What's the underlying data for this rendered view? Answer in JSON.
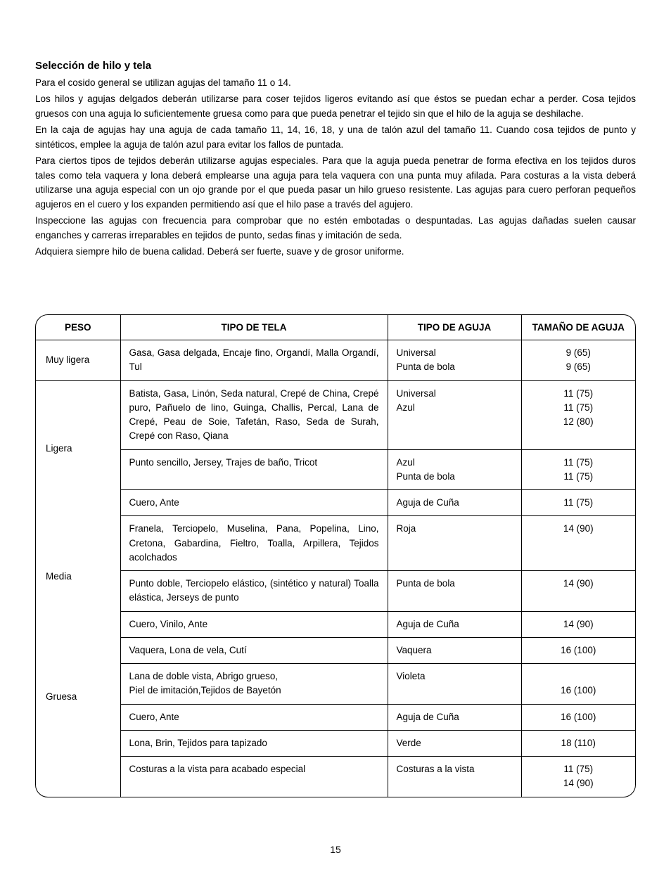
{
  "title": "Selección de hilo y tela",
  "paragraphs": [
    "Para el cosido general se utilizan agujas del tamaño 11 o 14.",
    "Los hilos y agujas delgados deberán utilizarse para coser tejidos ligeros evitando así que éstos se puedan echar a perder. Cosa tejidos gruesos con una aguja lo suficientemente gruesa como para que pueda penetrar el tejido sin que el hilo de la aguja se deshilache.",
    "En la caja de agujas hay una aguja de cada tamaño 11, 14, 16, 18, y una de talón azul del tamaño 11. Cuando cosa tejidos de punto y sintéticos, emplee la aguja de talón azul para evitar los fallos de puntada.",
    "Para ciertos tipos de tejidos deberán utilizarse agujas especiales. Para que la aguja pueda penetrar de forma efectiva en los tejidos duros tales como tela vaquera y lona deberá emplearse una aguja para tela vaquera con una punta muy afilada. Para costuras a la vista deberá utilizarse una aguja especial con un ojo grande por el que pueda pasar un hilo grueso resistente. Las agujas para cuero perforan pequeños agujeros en el cuero y los expanden permitiendo así que el hilo pase a través del agujero.",
    "Inspeccione las agujas con frecuencia para comprobar que no estén embotadas o despuntadas. Las agujas dañadas suelen causar enganches y carreras irreparables en tejidos de punto, sedas finas y imitación de seda.",
    "Adquiera siempre hilo de buena calidad. Deberá ser fuerte, suave y de grosor uniforme."
  ],
  "headers": {
    "peso": "PESO",
    "tela": "TIPO DE TELA",
    "aguja": "TIPO DE AGUJA",
    "tam": "TAMAÑO DE AGUJA"
  },
  "rows": {
    "r0": {
      "peso": "Muy ligera",
      "tela": "Gasa, Gasa delgada, Encaje fino, Organdí, Malla Organdí, Tul",
      "aguja": "Universal\nPunta de bola",
      "tam": "9 (65)\n9 (65)"
    },
    "r1": {
      "peso": "Ligera",
      "tela": "Batista, Gasa, Linón, Seda natural, Crepé de China, Crepé puro, Pañuelo de lino, Guinga, Challis, Percal, Lana de Crepé, Peau de Soie, Tafetán, Raso, Seda de Surah, Crepé con Raso, Qiana",
      "aguja": "Universal\nAzul",
      "tam": "11 (75)\n11 (75)\n12 (80)"
    },
    "r2": {
      "tela": "Punto sencillo, Jersey, Trajes de baño, Tricot",
      "aguja": "Azul\nPunta de bola",
      "tam": "11 (75)\n11 (75)"
    },
    "r3": {
      "tela": "Cuero, Ante",
      "aguja": "Aguja de Cuña",
      "tam": "11 (75)"
    },
    "r4": {
      "peso": "Media",
      "tela": "Franela, Terciopelo, Muselina, Pana, Popelina, Lino, Cretona, Gabardina, Fieltro, Toalla, Arpillera, Tejidos acolchados",
      "aguja": "Roja",
      "tam": "14 (90)"
    },
    "r5": {
      "tela": "Punto doble, Terciopelo elástico, (sintético y natural) Toalla elástica, Jerseys de punto",
      "aguja": "Punta de bola",
      "tam": "14 (90)"
    },
    "r6": {
      "tela": "Cuero, Vinilo, Ante",
      "aguja": "Aguja de Cuña",
      "tam": "14 (90)"
    },
    "r7": {
      "peso": "Gruesa",
      "tela": "Vaquera, Lona de vela, Cutí",
      "aguja": "Vaquera",
      "tam": "16 (100)"
    },
    "r8": {
      "tela": "Lana de doble vista, Abrigo grueso,\nPiel de imitación,Tejidos de Bayetón",
      "aguja": "Violeta",
      "tam": "\n16 (100)"
    },
    "r9": {
      "tela": "Cuero, Ante",
      "aguja": "Aguja de Cuña",
      "tam": "16 (100)"
    },
    "r10": {
      "tela": "Lona, Brin, Tejidos para tapizado",
      "aguja": "Verde",
      "tam": "18 (110)"
    },
    "r11": {
      "peso": "",
      "tela": "Costuras a la vista para acabado especial",
      "aguja": "Costuras a la vista",
      "tam": "11 (75)\n14 (90)"
    }
  },
  "page_number": "15"
}
